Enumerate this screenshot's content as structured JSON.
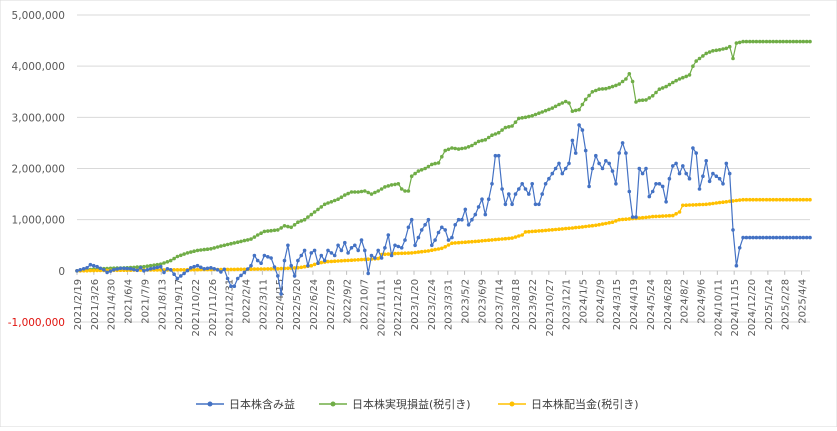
{
  "chart_data": {
    "type": "line",
    "title": "",
    "xlabel": "",
    "ylabel": "",
    "ylim": [
      -1000000,
      5000000
    ],
    "yticks": [
      {
        "value": -1000000,
        "label": "-1,000,000",
        "negative": true
      },
      {
        "value": 0,
        "label": "0"
      },
      {
        "value": 1000000,
        "label": "1,000,000"
      },
      {
        "value": 2000000,
        "label": "2,000,000"
      },
      {
        "value": 3000000,
        "label": "3,000,000"
      },
      {
        "value": 4000000,
        "label": "4,000,000"
      },
      {
        "value": 5000000,
        "label": "5,000,000"
      }
    ],
    "grid": "horizontal",
    "legend_position": "bottom",
    "point_count": 220,
    "x_tick_labels": [
      "2021/2/19",
      "2021/3/26",
      "2021/4/30",
      "2021/6/4",
      "2021/7/9",
      "2021/8/13",
      "2021/9/17",
      "2021/10/22",
      "2021/11/26",
      "2021/12/31",
      "2022/2/4",
      "2022/3/11",
      "2022/4/15",
      "2022/5/20",
      "2022/6/24",
      "2022/7/29",
      "2022/9/2",
      "2022/10/7",
      "2022/11/11",
      "2022/12/16",
      "2023/1/20",
      "2023/2/24",
      "2023/3/31",
      "2023/5/2",
      "2023/6/9",
      "2023/7/14",
      "2023/8/18",
      "2023/9/22",
      "2023/10/27",
      "2023/12/1",
      "2024/1/5",
      "2024/2/9",
      "2024/3/15",
      "2024/4/19",
      "2024/5/24",
      "2024/6/28",
      "2024/8/2",
      "2024/9/6",
      "2024/10/11",
      "2024/11/15",
      "2024/12/20",
      "2025/1/24",
      "2025/2/28",
      "2025/4/4"
    ],
    "series": [
      {
        "name": "日本株含み益",
        "color": "#4472c4",
        "keypoints": [
          [
            0,
            0
          ],
          [
            3,
            60
          ],
          [
            4,
            120
          ],
          [
            6,
            80
          ],
          [
            8,
            20
          ],
          [
            9,
            -30
          ],
          [
            11,
            20
          ],
          [
            13,
            50
          ],
          [
            16,
            40
          ],
          [
            18,
            10
          ],
          [
            19,
            60
          ],
          [
            20,
            0
          ],
          [
            22,
            40
          ],
          [
            25,
            80
          ],
          [
            26,
            -30
          ],
          [
            27,
            40
          ],
          [
            28,
            20
          ],
          [
            30,
            -150
          ],
          [
            32,
            -50
          ],
          [
            34,
            60
          ],
          [
            36,
            100
          ],
          [
            38,
            40
          ],
          [
            40,
            60
          ],
          [
            42,
            20
          ],
          [
            43,
            -20
          ],
          [
            44,
            30
          ],
          [
            45,
            -150
          ],
          [
            46,
            -300
          ],
          [
            47,
            -300
          ],
          [
            48,
            -150
          ],
          [
            50,
            -30
          ],
          [
            52,
            100
          ],
          [
            53,
            300
          ],
          [
            54,
            200
          ],
          [
            55,
            150
          ],
          [
            56,
            300
          ],
          [
            58,
            250
          ],
          [
            60,
            -100
          ],
          [
            61,
            -450
          ],
          [
            62,
            200
          ],
          [
            63,
            500
          ],
          [
            64,
            100
          ],
          [
            65,
            -100
          ],
          [
            66,
            200
          ],
          [
            67,
            300
          ],
          [
            68,
            400
          ],
          [
            69,
            100
          ],
          [
            70,
            350
          ],
          [
            71,
            400
          ],
          [
            72,
            150
          ],
          [
            73,
            300
          ],
          [
            74,
            200
          ],
          [
            75,
            400
          ],
          [
            77,
            300
          ],
          [
            78,
            500
          ],
          [
            79,
            400
          ],
          [
            80,
            550
          ],
          [
            81,
            350
          ],
          [
            82,
            450
          ],
          [
            83,
            500
          ],
          [
            84,
            400
          ],
          [
            85,
            600
          ],
          [
            86,
            400
          ],
          [
            87,
            -50
          ],
          [
            88,
            300
          ],
          [
            89,
            250
          ],
          [
            90,
            400
          ],
          [
            91,
            250
          ],
          [
            92,
            450
          ],
          [
            93,
            700
          ],
          [
            94,
            300
          ],
          [
            95,
            500
          ],
          [
            97,
            450
          ],
          [
            98,
            600
          ],
          [
            99,
            850
          ],
          [
            100,
            1000
          ],
          [
            101,
            500
          ],
          [
            102,
            650
          ],
          [
            103,
            800
          ],
          [
            104,
            900
          ],
          [
            105,
            1000
          ],
          [
            106,
            500
          ],
          [
            107,
            600
          ],
          [
            108,
            750
          ],
          [
            109,
            850
          ],
          [
            110,
            800
          ],
          [
            111,
            600
          ],
          [
            112,
            650
          ],
          [
            113,
            900
          ],
          [
            114,
            1000
          ],
          [
            115,
            1000
          ],
          [
            116,
            1200
          ],
          [
            117,
            900
          ],
          [
            118,
            1000
          ],
          [
            119,
            1100
          ],
          [
            120,
            1250
          ],
          [
            121,
            1400
          ],
          [
            122,
            1100
          ],
          [
            123,
            1400
          ],
          [
            124,
            1700
          ],
          [
            125,
            2250
          ],
          [
            126,
            2250
          ],
          [
            127,
            1600
          ],
          [
            128,
            1300
          ],
          [
            129,
            1500
          ],
          [
            130,
            1300
          ],
          [
            131,
            1500
          ],
          [
            132,
            1600
          ],
          [
            133,
            1700
          ],
          [
            134,
            1600
          ],
          [
            135,
            1500
          ],
          [
            136,
            1700
          ],
          [
            137,
            1300
          ],
          [
            138,
            1300
          ],
          [
            139,
            1500
          ],
          [
            140,
            1700
          ],
          [
            141,
            1800
          ],
          [
            142,
            1900
          ],
          [
            143,
            2000
          ],
          [
            144,
            2100
          ],
          [
            145,
            1900
          ],
          [
            146,
            2000
          ],
          [
            147,
            2100
          ],
          [
            148,
            2550
          ],
          [
            149,
            2300
          ],
          [
            150,
            2850
          ],
          [
            151,
            2750
          ],
          [
            152,
            2350
          ],
          [
            153,
            1650
          ],
          [
            154,
            2000
          ],
          [
            155,
            2250
          ],
          [
            156,
            2100
          ],
          [
            157,
            2000
          ],
          [
            158,
            2150
          ],
          [
            159,
            2100
          ],
          [
            160,
            1950
          ],
          [
            161,
            1700
          ],
          [
            162,
            2300
          ],
          [
            163,
            2500
          ],
          [
            164,
            2300
          ],
          [
            165,
            1550
          ],
          [
            166,
            1050
          ],
          [
            167,
            1050
          ],
          [
            168,
            2000
          ],
          [
            169,
            1900
          ],
          [
            170,
            2000
          ],
          [
            171,
            1450
          ],
          [
            172,
            1550
          ],
          [
            173,
            1700
          ],
          [
            174,
            1700
          ],
          [
            175,
            1650
          ],
          [
            176,
            1350
          ],
          [
            177,
            1800
          ],
          [
            178,
            2050
          ],
          [
            179,
            2100
          ],
          [
            180,
            1900
          ],
          [
            181,
            2050
          ],
          [
            182,
            1900
          ],
          [
            183,
            1800
          ],
          [
            184,
            2400
          ],
          [
            185,
            2300
          ],
          [
            186,
            1600
          ],
          [
            187,
            1850
          ],
          [
            188,
            2150
          ],
          [
            189,
            1750
          ],
          [
            190,
            1900
          ],
          [
            191,
            1850
          ],
          [
            192,
            1800
          ],
          [
            193,
            1700
          ],
          [
            194,
            2100
          ],
          [
            195,
            1900
          ],
          [
            196,
            800
          ],
          [
            197,
            100
          ],
          [
            198,
            450
          ],
          [
            199,
            650
          ]
        ]
      },
      {
        "name": "日本株実現損益(税引き)",
        "color": "#70ad47",
        "keypoints": [
          [
            0,
            0
          ],
          [
            5,
            30
          ],
          [
            10,
            50
          ],
          [
            15,
            60
          ],
          [
            20,
            80
          ],
          [
            25,
            130
          ],
          [
            28,
            200
          ],
          [
            30,
            280
          ],
          [
            33,
            350
          ],
          [
            36,
            400
          ],
          [
            40,
            430
          ],
          [
            44,
            500
          ],
          [
            48,
            560
          ],
          [
            52,
            620
          ],
          [
            54,
            700
          ],
          [
            56,
            770
          ],
          [
            60,
            800
          ],
          [
            62,
            880
          ],
          [
            64,
            850
          ],
          [
            66,
            950
          ],
          [
            68,
            1000
          ],
          [
            70,
            1100
          ],
          [
            72,
            1200
          ],
          [
            74,
            1300
          ],
          [
            76,
            1350
          ],
          [
            78,
            1400
          ],
          [
            80,
            1480
          ],
          [
            82,
            1540
          ],
          [
            84,
            1540
          ],
          [
            86,
            1560
          ],
          [
            88,
            1500
          ],
          [
            90,
            1560
          ],
          [
            92,
            1640
          ],
          [
            94,
            1680
          ],
          [
            96,
            1700
          ],
          [
            97,
            1600
          ],
          [
            98,
            1560
          ],
          [
            99,
            1560
          ],
          [
            100,
            1850
          ],
          [
            102,
            1950
          ],
          [
            104,
            2000
          ],
          [
            106,
            2080
          ],
          [
            108,
            2110
          ],
          [
            110,
            2350
          ],
          [
            112,
            2400
          ],
          [
            114,
            2380
          ],
          [
            116,
            2400
          ],
          [
            118,
            2450
          ],
          [
            120,
            2530
          ],
          [
            122,
            2560
          ],
          [
            124,
            2650
          ],
          [
            126,
            2700
          ],
          [
            128,
            2800
          ],
          [
            130,
            2830
          ],
          [
            132,
            2980
          ],
          [
            134,
            3000
          ],
          [
            136,
            3030
          ],
          [
            138,
            3080
          ],
          [
            140,
            3130
          ],
          [
            142,
            3180
          ],
          [
            144,
            3250
          ],
          [
            146,
            3310
          ],
          [
            147,
            3280
          ],
          [
            148,
            3120
          ],
          [
            150,
            3150
          ],
          [
            152,
            3350
          ],
          [
            154,
            3500
          ],
          [
            156,
            3550
          ],
          [
            158,
            3560
          ],
          [
            160,
            3600
          ],
          [
            162,
            3650
          ],
          [
            164,
            3750
          ],
          [
            165,
            3850
          ],
          [
            166,
            3700
          ],
          [
            167,
            3300
          ],
          [
            168,
            3330
          ],
          [
            170,
            3340
          ],
          [
            172,
            3420
          ],
          [
            174,
            3550
          ],
          [
            176,
            3600
          ],
          [
            178,
            3680
          ],
          [
            180,
            3750
          ],
          [
            182,
            3800
          ],
          [
            183,
            3830
          ],
          [
            184,
            4000
          ],
          [
            185,
            4100
          ],
          [
            186,
            4150
          ],
          [
            188,
            4250
          ],
          [
            190,
            4300
          ],
          [
            192,
            4320
          ],
          [
            194,
            4350
          ],
          [
            195,
            4380
          ],
          [
            196,
            4150
          ],
          [
            197,
            4450
          ],
          [
            199,
            4480
          ]
        ]
      },
      {
        "name": "日本株配当金(税引き)",
        "color": "#ffc000",
        "keypoints": [
          [
            0,
            0
          ],
          [
            10,
            10
          ],
          [
            20,
            15
          ],
          [
            40,
            25
          ],
          [
            50,
            30
          ],
          [
            60,
            40
          ],
          [
            66,
            60
          ],
          [
            70,
            100
          ],
          [
            72,
            150
          ],
          [
            75,
            180
          ],
          [
            80,
            200
          ],
          [
            90,
            240
          ],
          [
            91,
            320
          ],
          [
            96,
            340
          ],
          [
            100,
            350
          ],
          [
            105,
            390
          ],
          [
            109,
            440
          ],
          [
            110,
            470
          ],
          [
            112,
            540
          ],
          [
            116,
            560
          ],
          [
            120,
            580
          ],
          [
            125,
            610
          ],
          [
            130,
            640
          ],
          [
            133,
            700
          ],
          [
            134,
            760
          ],
          [
            140,
            790
          ],
          [
            150,
            850
          ],
          [
            155,
            890
          ],
          [
            160,
            950
          ],
          [
            162,
            1000
          ],
          [
            168,
            1030
          ],
          [
            172,
            1060
          ],
          [
            178,
            1080
          ],
          [
            180,
            1150
          ],
          [
            181,
            1280
          ],
          [
            188,
            1300
          ],
          [
            194,
            1350
          ],
          [
            199,
            1390
          ]
        ]
      }
    ]
  }
}
